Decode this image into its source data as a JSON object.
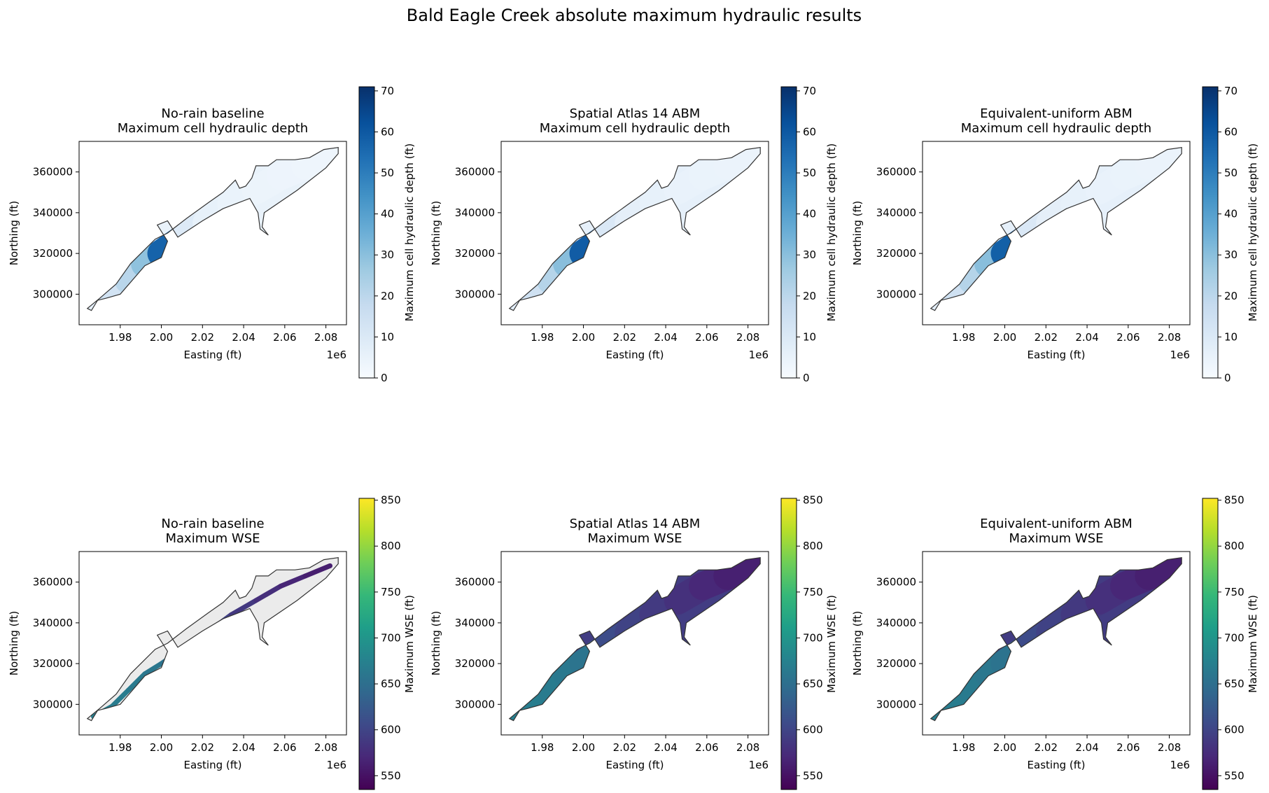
{
  "figure": {
    "suptitle": "Bald Eagle Creek absolute maximum hydraulic results"
  },
  "colors": {
    "outline": "#333333",
    "no_data_fill": "#ebebeb",
    "blues": [
      "#f7fbff",
      "#deebf7",
      "#c6dbef",
      "#9ecae1",
      "#6baed6",
      "#4292c6",
      "#2171b5",
      "#08519c",
      "#08306b"
    ],
    "viridis": [
      "#440154",
      "#482878",
      "#3e4a89",
      "#31688e",
      "#26828e",
      "#1f9e89",
      "#35b779",
      "#6ece58",
      "#b5de2b",
      "#fde725"
    ]
  },
  "chart_data": [
    {
      "type": "heatmap",
      "title": "No-rain baseline\nMaximum cell hydraulic depth",
      "xlabel": "Easting (ft)",
      "ylabel": "Northing (ft)",
      "xlim": [
        1960000,
        2090000
      ],
      "ylim": [
        285000,
        375000
      ],
      "x_offset_label": "1e6",
      "xticks": [
        1980000,
        2000000,
        2020000,
        2040000,
        2060000,
        2080000
      ],
      "xtick_labels": [
        "1.98",
        "2.00",
        "2.02",
        "2.04",
        "2.06",
        "2.08"
      ],
      "yticks": [
        300000,
        320000,
        340000,
        360000
      ],
      "ytick_labels": [
        "300000",
        "320000",
        "340000",
        "360000"
      ],
      "colorbar": {
        "label": "Maximum cell hydraulic depth (ft)",
        "cmap": "blues",
        "range": [
          0,
          71
        ],
        "ticks": [
          0,
          10,
          20,
          30,
          40,
          50,
          60,
          70
        ],
        "tick_labels": [
          "0",
          "10",
          "20",
          "30",
          "40",
          "50",
          "60",
          "70"
        ]
      },
      "extent": "full",
      "values_along_valley": [
        [
          0,
          6
        ],
        [
          0.1,
          14
        ],
        [
          0.2,
          22
        ],
        [
          0.28,
          30
        ],
        [
          0.35,
          48
        ],
        [
          0.38,
          68
        ],
        [
          0.42,
          12
        ],
        [
          0.5,
          6
        ],
        [
          0.7,
          4
        ],
        [
          1.0,
          3
        ]
      ]
    },
    {
      "type": "heatmap",
      "title": "Spatial Atlas 14 ABM\nMaximum cell hydraulic depth",
      "xlabel": "Easting (ft)",
      "ylabel": "Northing (ft)",
      "xlim": [
        1960000,
        2090000
      ],
      "ylim": [
        285000,
        375000
      ],
      "x_offset_label": "1e6",
      "xticks": [
        1980000,
        2000000,
        2020000,
        2040000,
        2060000,
        2080000
      ],
      "xtick_labels": [
        "1.98",
        "2.00",
        "2.02",
        "2.04",
        "2.06",
        "2.08"
      ],
      "yticks": [
        300000,
        320000,
        340000,
        360000
      ],
      "ytick_labels": [
        "300000",
        "320000",
        "340000",
        "360000"
      ],
      "colorbar": {
        "label": "Maximum cell hydraulic depth (ft)",
        "cmap": "blues",
        "range": [
          0,
          71
        ],
        "ticks": [
          0,
          10,
          20,
          30,
          40,
          50,
          60,
          70
        ],
        "tick_labels": [
          "0",
          "10",
          "20",
          "30",
          "40",
          "50",
          "60",
          "70"
        ]
      },
      "extent": "full",
      "values_along_valley": [
        [
          0,
          7
        ],
        [
          0.1,
          15
        ],
        [
          0.2,
          23
        ],
        [
          0.28,
          31
        ],
        [
          0.35,
          50
        ],
        [
          0.38,
          70
        ],
        [
          0.42,
          13
        ],
        [
          0.5,
          7
        ],
        [
          0.7,
          5
        ],
        [
          1.0,
          4
        ]
      ]
    },
    {
      "type": "heatmap",
      "title": "Equivalent-uniform ABM\nMaximum cell hydraulic depth",
      "xlabel": "Easting (ft)",
      "ylabel": "Northing (ft)",
      "xlim": [
        1960000,
        2090000
      ],
      "ylim": [
        285000,
        375000
      ],
      "x_offset_label": "1e6",
      "xticks": [
        1980000,
        2000000,
        2020000,
        2040000,
        2060000,
        2080000
      ],
      "xtick_labels": [
        "1.98",
        "2.00",
        "2.02",
        "2.04",
        "2.06",
        "2.08"
      ],
      "yticks": [
        300000,
        320000,
        340000,
        360000
      ],
      "ytick_labels": [
        "300000",
        "320000",
        "340000",
        "360000"
      ],
      "colorbar": {
        "label": "Maximum cell hydraulic depth (ft)",
        "cmap": "blues",
        "range": [
          0,
          71
        ],
        "ticks": [
          0,
          10,
          20,
          30,
          40,
          50,
          60,
          70
        ],
        "tick_labels": [
          "0",
          "10",
          "20",
          "30",
          "40",
          "50",
          "60",
          "70"
        ]
      },
      "extent": "full",
      "values_along_valley": [
        [
          0,
          7
        ],
        [
          0.1,
          15
        ],
        [
          0.2,
          23
        ],
        [
          0.28,
          31
        ],
        [
          0.35,
          49
        ],
        [
          0.38,
          69
        ],
        [
          0.42,
          13
        ],
        [
          0.5,
          7
        ],
        [
          0.7,
          5
        ],
        [
          1.0,
          4
        ]
      ]
    },
    {
      "type": "heatmap",
      "title": "No-rain baseline\nMaximum WSE",
      "xlabel": "Easting (ft)",
      "ylabel": "Northing (ft)",
      "xlim": [
        1960000,
        2090000
      ],
      "ylim": [
        285000,
        375000
      ],
      "x_offset_label": "1e6",
      "xticks": [
        1980000,
        2000000,
        2020000,
        2040000,
        2060000,
        2080000
      ],
      "xtick_labels": [
        "1.98",
        "2.00",
        "2.02",
        "2.04",
        "2.06",
        "2.08"
      ],
      "yticks": [
        300000,
        320000,
        340000,
        360000
      ],
      "ytick_labels": [
        "300000",
        "320000",
        "340000",
        "360000"
      ],
      "colorbar": {
        "label": "Maximum WSE (ft)",
        "cmap": "viridis",
        "range": [
          535,
          852
        ],
        "ticks": [
          550,
          600,
          650,
          700,
          750,
          800,
          850
        ],
        "tick_labels": [
          "550",
          "600",
          "650",
          "700",
          "750",
          "800",
          "850"
        ]
      },
      "extent": "channel",
      "values_along_valley": [
        [
          0,
          670
        ],
        [
          0.2,
          665
        ],
        [
          0.38,
          655
        ],
        [
          0.42,
          610
        ],
        [
          0.6,
          590
        ],
        [
          0.8,
          570
        ],
        [
          1.0,
          555
        ]
      ]
    },
    {
      "type": "heatmap",
      "title": "Spatial Atlas 14 ABM\nMaximum WSE",
      "xlabel": "Easting (ft)",
      "ylabel": "Northing (ft)",
      "xlim": [
        1960000,
        2090000
      ],
      "ylim": [
        285000,
        375000
      ],
      "x_offset_label": "1e6",
      "xticks": [
        1980000,
        2000000,
        2020000,
        2040000,
        2060000,
        2080000
      ],
      "xtick_labels": [
        "1.98",
        "2.00",
        "2.02",
        "2.04",
        "2.06",
        "2.08"
      ],
      "yticks": [
        300000,
        320000,
        340000,
        360000
      ],
      "ytick_labels": [
        "300000",
        "320000",
        "340000",
        "360000"
      ],
      "colorbar": {
        "label": "Maximum WSE (ft)",
        "cmap": "viridis",
        "range": [
          535,
          852
        ],
        "ticks": [
          550,
          600,
          650,
          700,
          750,
          800,
          850
        ],
        "tick_labels": [
          "550",
          "600",
          "650",
          "700",
          "750",
          "800",
          "850"
        ]
      },
      "extent": "full",
      "values_along_valley": [
        [
          0,
          672
        ],
        [
          0.2,
          666
        ],
        [
          0.38,
          656
        ],
        [
          0.42,
          612
        ],
        [
          0.6,
          592
        ],
        [
          0.8,
          572
        ],
        [
          1.0,
          556
        ]
      ]
    },
    {
      "type": "heatmap",
      "title": "Equivalent-uniform ABM\nMaximum WSE",
      "xlabel": "Easting (ft)",
      "ylabel": "Northing (ft)",
      "xlim": [
        1960000,
        2090000
      ],
      "ylim": [
        285000,
        375000
      ],
      "x_offset_label": "1e6",
      "xticks": [
        1980000,
        2000000,
        2020000,
        2040000,
        2060000,
        2080000
      ],
      "xtick_labels": [
        "1.98",
        "2.00",
        "2.02",
        "2.04",
        "2.06",
        "2.08"
      ],
      "yticks": [
        300000,
        320000,
        340000,
        360000
      ],
      "ytick_labels": [
        "300000",
        "320000",
        "340000",
        "360000"
      ],
      "colorbar": {
        "label": "Maximum WSE (ft)",
        "cmap": "viridis",
        "range": [
          535,
          852
        ],
        "ticks": [
          550,
          600,
          650,
          700,
          750,
          800,
          850
        ],
        "tick_labels": [
          "550",
          "600",
          "650",
          "700",
          "750",
          "800",
          "850"
        ]
      },
      "extent": "full",
      "values_along_valley": [
        [
          0,
          671
        ],
        [
          0.2,
          665
        ],
        [
          0.38,
          655
        ],
        [
          0.42,
          611
        ],
        [
          0.6,
          591
        ],
        [
          0.8,
          571
        ],
        [
          1.0,
          556
        ]
      ]
    }
  ]
}
